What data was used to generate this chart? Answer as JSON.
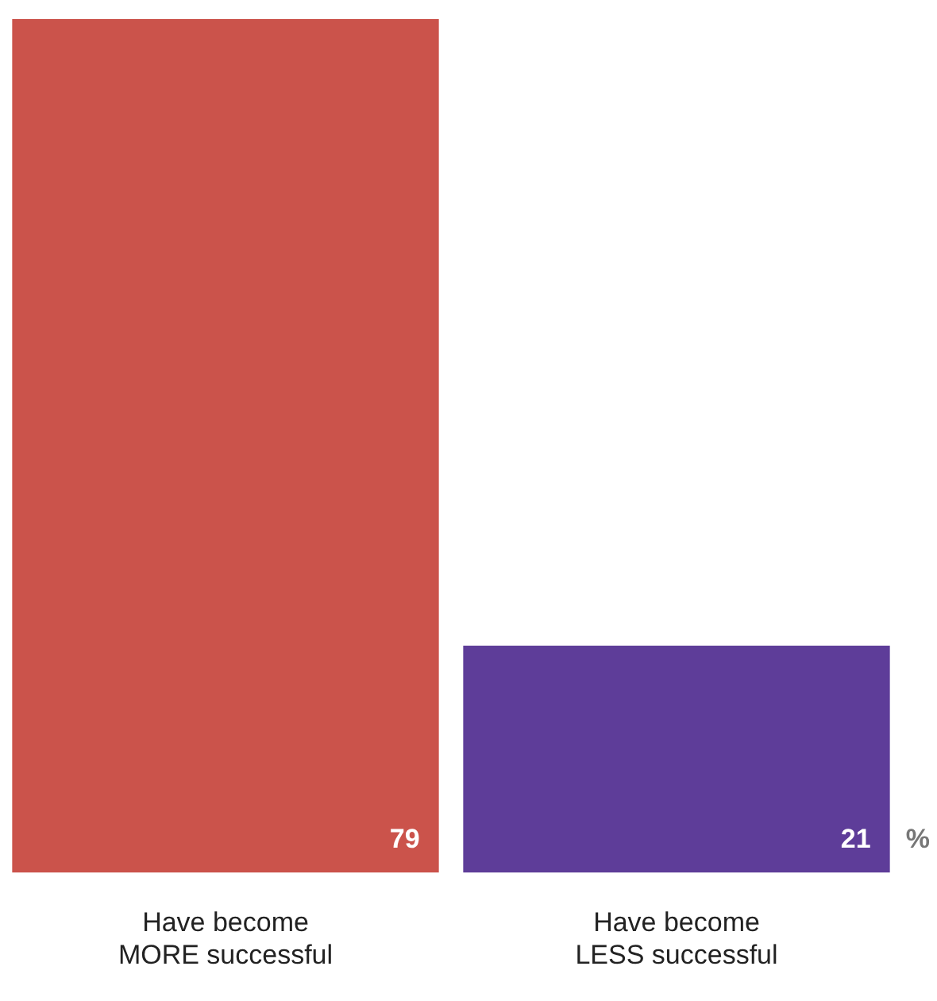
{
  "chart_data": {
    "type": "bar",
    "categories": [
      "Have become\nMORE successful",
      "Have become\nLESS successful"
    ],
    "values": [
      79,
      21
    ],
    "colors": [
      "#cb534b",
      "#5e3d99"
    ],
    "data_labels": true,
    "annotations": [
      "%"
    ]
  }
}
